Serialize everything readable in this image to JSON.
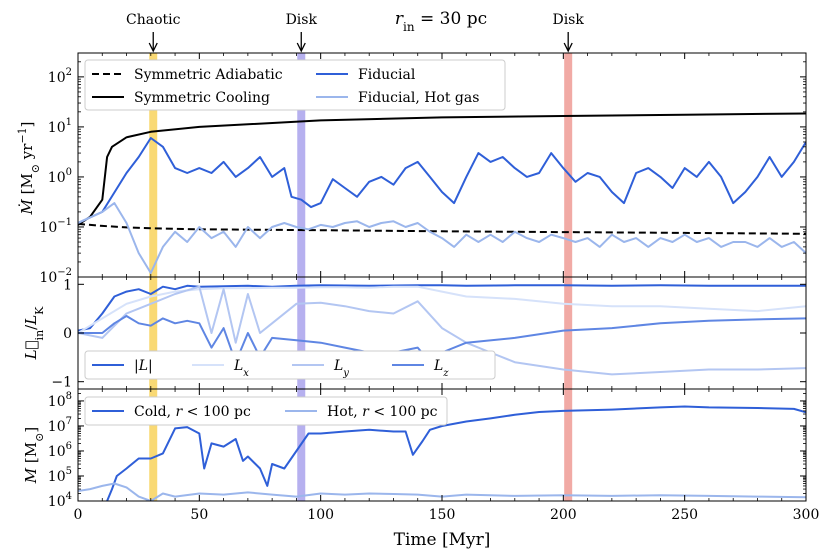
{
  "chart_data": {
    "type": "line",
    "title": "r_in = 30 pc",
    "title_parts": {
      "symbol": "r",
      "subscript": "in",
      "rest": " = 30 pc"
    },
    "xlabel": "Time [Myr]",
    "xlim": [
      0,
      300
    ],
    "xticks": [
      0,
      50,
      100,
      150,
      200,
      250,
      300
    ],
    "annotations": [
      {
        "label": "Chaotic",
        "x": 31,
        "color": "#f8d25c"
      },
      {
        "label": "Disk",
        "x": 92,
        "color": "#a9a2ec"
      },
      {
        "label": "Disk",
        "x": 202,
        "color": "#ef9b95"
      }
    ],
    "panels": [
      {
        "id": "mdot",
        "ylabel": "Ṁ [M⊙ yr⁻¹]",
        "yscale": "log",
        "ylim": [
          0.01,
          300
        ],
        "yticks": [
          0.01,
          0.1,
          1,
          10,
          100
        ],
        "ytick_labels": [
          {
            "base": "10",
            "exp": "−2"
          },
          {
            "base": "10",
            "exp": "−1"
          },
          {
            "base": "10",
            "exp": "0"
          },
          {
            "base": "10",
            "exp": "1"
          },
          {
            "base": "10",
            "exp": "2"
          }
        ],
        "legend": [
          "Symmetric Adiabatic",
          "Fiducial",
          "Symmetric Cooling",
          "Fiducial, Hot gas"
        ],
        "series": [
          {
            "name": "Symmetric Adiabatic",
            "color": "#000000",
            "style": "dashed",
            "x": [
              0,
              10,
              20,
              30,
              50,
              100,
              150,
              200,
              250,
              300
            ],
            "y": [
              0.115,
              0.105,
              0.098,
              0.094,
              0.09,
              0.086,
              0.082,
              0.079,
              0.076,
              0.073
            ]
          },
          {
            "name": "Symmetric Cooling",
            "color": "#000000",
            "style": "solid",
            "x": [
              0,
              5,
              10,
              12,
              14,
              20,
              30,
              50,
              100,
              150,
              200,
              250,
              300
            ],
            "y": [
              0.11,
              0.16,
              0.35,
              2.5,
              4.0,
              6.2,
              8.0,
              10.0,
              13.5,
              15.5,
              16.5,
              17.5,
              18.5
            ]
          },
          {
            "name": "Fiducial",
            "color": "#2f5fd8",
            "style": "solid",
            "x": [
              0,
              10,
              20,
              25,
              30,
              35,
              40,
              45,
              50,
              55,
              60,
              65,
              70,
              75,
              80,
              85,
              88,
              92,
              96,
              100,
              105,
              110,
              115,
              120,
              125,
              130,
              135,
              140,
              145,
              150,
              155,
              160,
              165,
              170,
              175,
              180,
              185,
              190,
              195,
              200,
              205,
              210,
              215,
              220,
              225,
              230,
              235,
              240,
              245,
              250,
              255,
              260,
              265,
              270,
              275,
              280,
              285,
              290,
              295,
              300
            ],
            "y": [
              0.12,
              0.2,
              1.2,
              2.5,
              6.0,
              4.0,
              1.5,
              1.2,
              1.5,
              1.2,
              2.0,
              1.0,
              1.5,
              2.5,
              1.0,
              1.5,
              0.4,
              0.35,
              0.25,
              0.3,
              0.9,
              0.6,
              0.4,
              0.8,
              1.0,
              0.7,
              1.5,
              2.0,
              1.0,
              0.5,
              0.3,
              1.0,
              3.0,
              2.0,
              2.5,
              1.5,
              1.0,
              1.2,
              3.0,
              1.5,
              0.8,
              1.2,
              1.0,
              0.5,
              0.3,
              1.2,
              1.5,
              1.0,
              0.6,
              1.5,
              1.0,
              2.0,
              1.0,
              0.3,
              0.5,
              1.0,
              2.5,
              1.0,
              2.0,
              5.0
            ]
          },
          {
            "name": "Fiducial, Hot gas",
            "color": "#9bb6ec",
            "style": "solid",
            "x": [
              0,
              10,
              15,
              20,
              25,
              30,
              35,
              40,
              45,
              50,
              55,
              60,
              65,
              70,
              75,
              80,
              85,
              90,
              95,
              100,
              105,
              110,
              115,
              120,
              125,
              130,
              135,
              140,
              145,
              150,
              155,
              160,
              165,
              170,
              175,
              180,
              185,
              190,
              195,
              200,
              205,
              210,
              215,
              220,
              225,
              230,
              235,
              240,
              245,
              250,
              255,
              260,
              265,
              270,
              275,
              280,
              285,
              290,
              295,
              300
            ],
            "y": [
              0.12,
              0.2,
              0.3,
              0.12,
              0.03,
              0.012,
              0.04,
              0.08,
              0.05,
              0.1,
              0.06,
              0.08,
              0.04,
              0.1,
              0.06,
              0.1,
              0.12,
              0.1,
              0.09,
              0.11,
              0.1,
              0.12,
              0.13,
              0.1,
              0.12,
              0.13,
              0.1,
              0.12,
              0.08,
              0.06,
              0.04,
              0.07,
              0.05,
              0.07,
              0.05,
              0.08,
              0.06,
              0.05,
              0.07,
              0.06,
              0.05,
              0.06,
              0.04,
              0.07,
              0.05,
              0.06,
              0.04,
              0.06,
              0.05,
              0.07,
              0.05,
              0.06,
              0.04,
              0.05,
              0.05,
              0.04,
              0.06,
              0.04,
              0.05,
              0.03
            ]
          }
        ]
      },
      {
        "id": "ang",
        "ylabel": "L⃗_in / L_K",
        "yscale": "linear",
        "ylim": [
          -1.15,
          1.15
        ],
        "yticks": [
          -1,
          0,
          1
        ],
        "ytick_labels": [
          "−1",
          "0",
          "1"
        ],
        "legend": [
          "|L|",
          "L_x",
          "L_y",
          "L_z"
        ],
        "series": [
          {
            "name": "|L|",
            "color": "#2f5fd8",
            "style": "solid",
            "x": [
              0,
              5,
              10,
              15,
              20,
              25,
              30,
              35,
              40,
              45,
              50,
              60,
              70,
              80,
              90,
              100,
              120,
              140,
              150,
              160,
              180,
              200,
              220,
              240,
              260,
              280,
              300
            ],
            "y": [
              0.05,
              0.1,
              0.4,
              0.75,
              0.85,
              0.9,
              0.8,
              0.95,
              0.9,
              0.97,
              0.95,
              0.96,
              0.97,
              0.95,
              0.97,
              0.98,
              0.97,
              0.98,
              0.98,
              0.97,
              0.98,
              0.98,
              0.97,
              0.98,
              0.97,
              0.97,
              0.97
            ]
          },
          {
            "name": "L_x",
            "color": "#d6e2fa",
            "style": "solid",
            "x": [
              0,
              10,
              20,
              30,
              40,
              50,
              60,
              70,
              80,
              90,
              100,
              110,
              120,
              130,
              140,
              150,
              160,
              180,
              200,
              220,
              240,
              260,
              280,
              300
            ],
            "y": [
              0.0,
              0.3,
              0.6,
              0.75,
              0.85,
              0.9,
              0.92,
              0.92,
              0.93,
              0.93,
              0.94,
              0.94,
              0.93,
              0.95,
              0.95,
              0.85,
              0.75,
              0.7,
              0.6,
              0.55,
              0.55,
              0.5,
              0.45,
              0.55
            ]
          },
          {
            "name": "L_y",
            "color": "#b3c6f2",
            "style": "solid",
            "x": [
              0,
              10,
              20,
              30,
              40,
              50,
              55,
              60,
              65,
              70,
              75,
              80,
              90,
              100,
              110,
              120,
              130,
              140,
              150,
              160,
              170,
              180,
              200,
              220,
              240,
              260,
              280,
              300
            ],
            "y": [
              0.0,
              -0.1,
              0.4,
              0.6,
              0.8,
              0.95,
              0.0,
              0.9,
              -0.2,
              0.8,
              0.0,
              0.2,
              0.6,
              0.62,
              0.55,
              0.45,
              0.4,
              0.65,
              0.1,
              -0.2,
              -0.4,
              -0.6,
              -0.75,
              -0.85,
              -0.8,
              -0.75,
              -0.75,
              -0.72
            ]
          },
          {
            "name": "L_z",
            "color": "#5f86e3",
            "style": "solid",
            "x": [
              0,
              10,
              15,
              20,
              25,
              30,
              35,
              40,
              45,
              50,
              55,
              60,
              65,
              70,
              75,
              80,
              90,
              100,
              110,
              120,
              130,
              140,
              145,
              150,
              160,
              180,
              200,
              220,
              240,
              260,
              280,
              300
            ],
            "y": [
              0.0,
              0.0,
              0.2,
              0.35,
              0.2,
              0.15,
              0.3,
              0.2,
              0.25,
              0.2,
              -0.3,
              0.1,
              -0.6,
              0.0,
              -0.5,
              -0.1,
              -0.15,
              -0.2,
              -0.3,
              -0.4,
              -0.4,
              -0.3,
              -0.6,
              -0.4,
              -0.2,
              -0.1,
              0.05,
              0.1,
              0.2,
              0.25,
              0.28,
              0.3
            ]
          }
        ]
      },
      {
        "id": "mass",
        "ylabel": "M [M⊙]",
        "yscale": "log",
        "ylim": [
          10000,
          300000000
        ],
        "yticks": [
          10000,
          100000,
          1000000,
          10000000,
          100000000
        ],
        "ytick_labels": [
          {
            "base": "10",
            "exp": "4"
          },
          {
            "base": "10",
            "exp": "5"
          },
          {
            "base": "10",
            "exp": "6"
          },
          {
            "base": "10",
            "exp": "7"
          },
          {
            "base": "10",
            "exp": "8"
          }
        ],
        "legend": [
          "Cold, r < 100 pc",
          "Hot, r < 100 pc"
        ],
        "series": [
          {
            "name": "Cold, r < 100 pc",
            "color": "#2f5fd8",
            "style": "solid",
            "x": [
              12,
              14,
              16,
              20,
              25,
              30,
              35,
              40,
              45,
              50,
              52,
              55,
              60,
              65,
              68,
              70,
              75,
              78,
              80,
              85,
              90,
              95,
              100,
              110,
              120,
              130,
              135,
              138,
              142,
              145,
              150,
              160,
              170,
              180,
              190,
              200,
              220,
              240,
              250,
              260,
              280,
              295,
              300
            ],
            "y": [
              10000,
              30000,
              100000,
              200000,
              500000,
              500000,
              800000,
              8000000,
              9000000,
              5000000,
              200000,
              2000000,
              1500000,
              3000000,
              400000,
              600000,
              200000,
              40000,
              300000,
              200000,
              1000000,
              5000000,
              5000000,
              6000000,
              7000000,
              6000000,
              6000000,
              700000,
              2500000,
              7000000,
              10000000,
              15000000,
              20000000,
              28000000,
              36000000,
              40000000,
              45000000,
              55000000,
              60000000,
              55000000,
              52000000,
              48000000,
              35000000
            ]
          },
          {
            "name": "Hot, r < 100 pc",
            "color": "#9bb6ec",
            "style": "solid",
            "x": [
              0,
              5,
              10,
              15,
              20,
              25,
              30,
              35,
              40,
              50,
              60,
              70,
              80,
              90,
              100,
              110,
              120,
              130,
              140,
              150,
              160,
              180,
              200,
              220,
              240,
              260,
              280,
              300
            ],
            "y": [
              25000,
              30000,
              40000,
              50000,
              35000,
              15000,
              10000,
              20000,
              15000,
              20000,
              18000,
              22000,
              18000,
              15000,
              20000,
              18000,
              20000,
              19000,
              18000,
              15000,
              18000,
              16000,
              17000,
              16000,
              17000,
              16000,
              15000,
              14000
            ]
          }
        ]
      }
    ]
  }
}
